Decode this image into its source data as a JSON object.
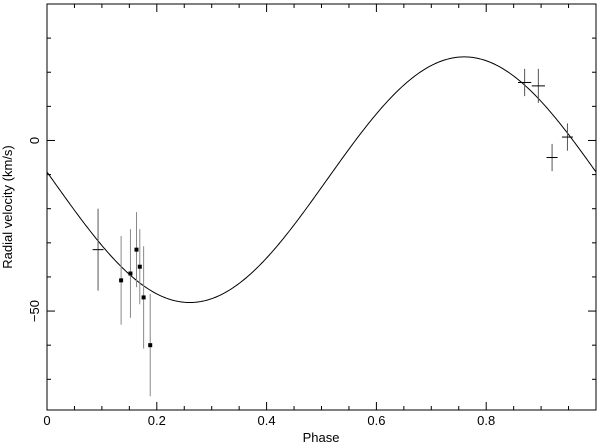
{
  "chart_data": {
    "type": "scatter",
    "title": "",
    "xlabel": "Phase",
    "ylabel": "Radial velocity (km/s)",
    "xlim": [
      0,
      1
    ],
    "ylim": [
      -79,
      40
    ],
    "x_ticks": [
      0,
      0.2,
      0.4,
      0.6,
      0.8
    ],
    "x_tick_labels": [
      "0",
      "0.2",
      "0.4",
      "0.6",
      "0.8"
    ],
    "y_ticks": [
      0,
      -50
    ],
    "y_tick_labels": [
      "0",
      "−50"
    ],
    "grid": false,
    "series": [
      {
        "type": "scatter",
        "marker": "square",
        "points": [
          {
            "x": 0.135,
            "y": -41,
            "yerr": 13
          },
          {
            "x": 0.152,
            "y": -39,
            "yerr": 13
          },
          {
            "x": 0.163,
            "y": -32,
            "yerr": 11
          },
          {
            "x": 0.169,
            "y": -37,
            "yerr": 11
          },
          {
            "x": 0.176,
            "y": -46,
            "yerr": 15
          },
          {
            "x": 0.188,
            "y": -60,
            "yerr": 15
          }
        ]
      },
      {
        "type": "scatter",
        "marker": "cross",
        "points": [
          {
            "x": 0.093,
            "y": -32,
            "yerr": 12,
            "xerr": 0.01
          },
          {
            "x": 0.87,
            "y": 17,
            "yerr": 4,
            "xerr": 0.012
          },
          {
            "x": 0.895,
            "y": 16,
            "yerr": 5,
            "xerr": 0.012
          },
          {
            "x": 0.92,
            "y": -5,
            "yerr": 4,
            "xerr": 0.01
          },
          {
            "x": 0.948,
            "y": 1,
            "yerr": 4,
            "xerr": 0.01
          }
        ]
      },
      {
        "type": "line",
        "model": "sinusoid",
        "gamma": -11.5,
        "amplitude": 36,
        "min_phase": 0.26
      }
    ]
  }
}
